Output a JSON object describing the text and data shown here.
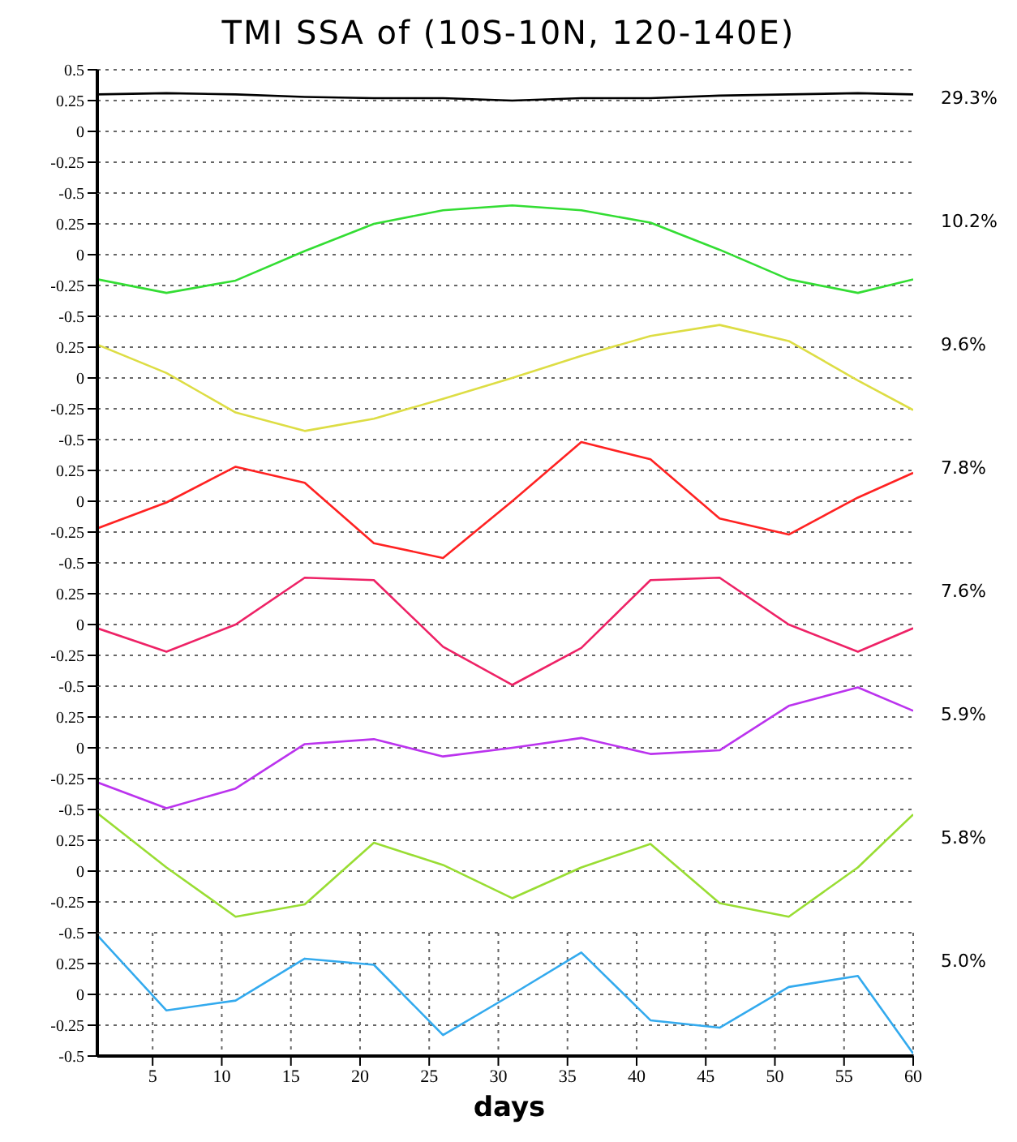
{
  "chart_data": [
    {
      "type": "line",
      "title": "TMI SSA of (10S-10N, 120-140E)",
      "x": [
        1,
        6,
        11,
        16,
        21,
        26,
        31,
        36,
        41,
        46,
        51,
        56,
        60
      ],
      "series": [
        {
          "color": "#000000",
          "values": [
            0.3,
            0.31,
            0.3,
            0.28,
            0.27,
            0.27,
            0.25,
            0.27,
            0.27,
            0.29,
            0.3,
            0.31,
            0.3
          ]
        }
      ],
      "xlim": [
        1,
        60
      ],
      "xticks": [
        5,
        10,
        15,
        20,
        25,
        30,
        35,
        40,
        45,
        50,
        55,
        60
      ],
      "ylim": [
        -0.5,
        0.5
      ],
      "yticks": [
        -0.5,
        -0.25,
        0,
        0.25,
        0.5
      ],
      "grid": "y",
      "tick_labels": "y",
      "annotations": [
        "29.3%"
      ]
    },
    {
      "type": "line",
      "x": [
        1,
        6,
        11,
        16,
        21,
        26,
        31,
        36,
        41,
        46,
        51,
        56,
        60
      ],
      "series": [
        {
          "color": "#33dd33",
          "values": [
            -0.2,
            -0.31,
            -0.21,
            0.03,
            0.25,
            0.36,
            0.4,
            0.36,
            0.26,
            0.04,
            -0.2,
            -0.31,
            -0.2
          ]
        }
      ],
      "xlim": [
        1,
        60
      ],
      "xticks": [
        5,
        10,
        15,
        20,
        25,
        30,
        35,
        40,
        45,
        50,
        55,
        60
      ],
      "ylim": [
        -0.5,
        0.5
      ],
      "yticks": [
        -0.5,
        -0.25,
        0,
        0.25
      ],
      "grid": "y",
      "tick_labels": "y",
      "annotations": [
        "10.2%"
      ]
    },
    {
      "type": "line",
      "x": [
        1,
        6,
        11,
        16,
        21,
        26,
        31,
        36,
        41,
        46,
        51,
        56,
        60
      ],
      "series": [
        {
          "color": "#dddd44",
          "values": [
            0.27,
            0.04,
            -0.28,
            -0.43,
            -0.33,
            -0.17,
            0,
            0.18,
            0.34,
            0.43,
            0.3,
            -0.02,
            -0.26
          ]
        }
      ],
      "xlim": [
        1,
        60
      ],
      "xticks": [
        5,
        10,
        15,
        20,
        25,
        30,
        35,
        40,
        45,
        50,
        55,
        60
      ],
      "ylim": [
        -0.5,
        0.5
      ],
      "yticks": [
        -0.5,
        -0.25,
        0,
        0.25
      ],
      "grid": "y",
      "tick_labels": "y",
      "annotations": [
        "9.6%"
      ]
    },
    {
      "type": "line",
      "x": [
        1,
        6,
        11,
        16,
        21,
        26,
        31,
        36,
        41,
        46,
        51,
        56,
        60
      ],
      "series": [
        {
          "color": "#ff2222",
          "values": [
            -0.22,
            -0.01,
            0.28,
            0.15,
            -0.34,
            -0.46,
            0,
            0.48,
            0.34,
            -0.14,
            -0.27,
            0.03,
            0.23
          ]
        }
      ],
      "xlim": [
        1,
        60
      ],
      "xticks": [
        5,
        10,
        15,
        20,
        25,
        30,
        35,
        40,
        45,
        50,
        55,
        60
      ],
      "ylim": [
        -0.5,
        0.5
      ],
      "yticks": [
        -0.5,
        -0.25,
        0,
        0.25
      ],
      "grid": "y",
      "tick_labels": "y",
      "annotations": [
        "7.8%"
      ]
    },
    {
      "type": "line",
      "x": [
        1,
        6,
        11,
        16,
        21,
        26,
        31,
        36,
        41,
        46,
        51,
        56,
        60
      ],
      "series": [
        {
          "color": "#ee2266",
          "values": [
            -0.03,
            -0.22,
            0,
            0.38,
            0.36,
            -0.18,
            -0.49,
            -0.19,
            0.36,
            0.38,
            0,
            -0.22,
            -0.03
          ]
        }
      ],
      "xlim": [
        1,
        60
      ],
      "xticks": [
        5,
        10,
        15,
        20,
        25,
        30,
        35,
        40,
        45,
        50,
        55,
        60
      ],
      "ylim": [
        -0.5,
        0.5
      ],
      "yticks": [
        -0.5,
        -0.25,
        0,
        0.25
      ],
      "grid": "y",
      "tick_labels": "y",
      "annotations": [
        "7.6%"
      ]
    },
    {
      "type": "line",
      "x": [
        1,
        6,
        11,
        16,
        21,
        26,
        31,
        36,
        41,
        46,
        51,
        56,
        60
      ],
      "series": [
        {
          "color": "#bb33ee",
          "values": [
            -0.28,
            -0.49,
            -0.33,
            0.03,
            0.07,
            -0.07,
            0,
            0.08,
            -0.05,
            -0.02,
            0.34,
            0.49,
            0.3
          ]
        }
      ],
      "xlim": [
        1,
        60
      ],
      "xticks": [
        5,
        10,
        15,
        20,
        25,
        30,
        35,
        40,
        45,
        50,
        55,
        60
      ],
      "ylim": [
        -0.5,
        0.5
      ],
      "yticks": [
        -0.5,
        -0.25,
        0,
        0.25
      ],
      "grid": "y",
      "tick_labels": "y",
      "annotations": [
        "5.9%"
      ]
    },
    {
      "type": "line",
      "x": [
        1,
        6,
        11,
        16,
        21,
        26,
        31,
        36,
        41,
        46,
        51,
        56,
        60
      ],
      "series": [
        {
          "color": "#99dd33",
          "values": [
            0.47,
            0.03,
            -0.37,
            -0.27,
            0.23,
            0.05,
            -0.22,
            0.03,
            0.22,
            -0.26,
            -0.37,
            0.03,
            0.46
          ]
        }
      ],
      "xlim": [
        1,
        60
      ],
      "xticks": [
        5,
        10,
        15,
        20,
        25,
        30,
        35,
        40,
        45,
        50,
        55,
        60
      ],
      "ylim": [
        -0.5,
        0.5
      ],
      "yticks": [
        -0.5,
        -0.25,
        0,
        0.25
      ],
      "grid": "y",
      "tick_labels": "y",
      "annotations": [
        "5.8%"
      ]
    },
    {
      "type": "line",
      "xlabel": "days",
      "x": [
        1,
        6,
        11,
        16,
        21,
        26,
        31,
        36,
        41,
        46,
        51,
        56,
        60
      ],
      "series": [
        {
          "color": "#33aaee",
          "values": [
            0.48,
            -0.13,
            -0.05,
            0.29,
            0.24,
            -0.33,
            0,
            0.34,
            -0.21,
            -0.27,
            0.06,
            0.15,
            -0.48
          ]
        }
      ],
      "xlim": [
        1,
        60
      ],
      "xticks": [
        5,
        10,
        15,
        20,
        25,
        30,
        35,
        40,
        45,
        50,
        55,
        60
      ],
      "ylim": [
        -0.5,
        0.5
      ],
      "yticks": [
        -0.5,
        -0.25,
        0,
        0.25
      ],
      "grid": true,
      "annotations": [
        "5.0%"
      ]
    }
  ]
}
